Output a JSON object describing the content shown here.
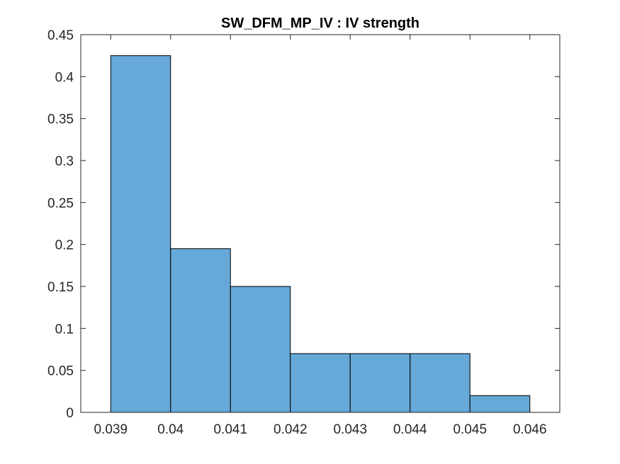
{
  "chart_data": {
    "type": "bar",
    "title": "SW_DFM_MP_IV : IV strength",
    "xlabel": "",
    "ylabel": "",
    "bin_edges": [
      0.039,
      0.04,
      0.041,
      0.042,
      0.043,
      0.044,
      0.045,
      0.046
    ],
    "values": [
      0.425,
      0.195,
      0.15,
      0.07,
      0.07,
      0.07,
      0.02
    ],
    "xlim": [
      0.0385,
      0.0465
    ],
    "ylim": [
      0,
      0.45
    ],
    "x_ticks": [
      "0.039",
      "0.04",
      "0.041",
      "0.042",
      "0.043",
      "0.044",
      "0.045",
      "0.046"
    ],
    "x_tick_values": [
      0.039,
      0.04,
      0.041,
      0.042,
      0.043,
      0.044,
      0.045,
      0.046
    ],
    "y_ticks": [
      "0",
      "0.05",
      "0.1",
      "0.15",
      "0.2",
      "0.25",
      "0.3",
      "0.35",
      "0.4",
      "0.45"
    ],
    "y_tick_values": [
      0,
      0.05,
      0.1,
      0.15,
      0.2,
      0.25,
      0.3,
      0.35,
      0.4,
      0.45
    ],
    "grid": false,
    "bar_color": "#66a9d8",
    "bar_edge_color": "#000000"
  }
}
